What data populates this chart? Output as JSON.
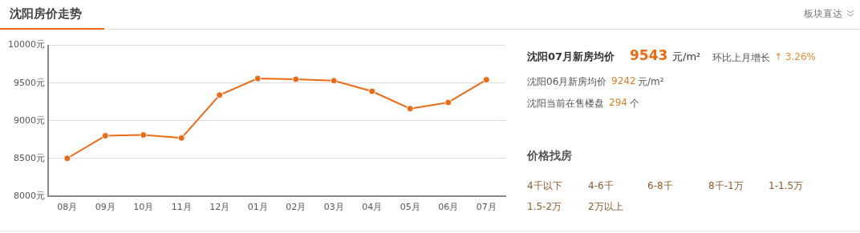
{
  "chart_data": [
    {
      "type": "line",
      "title": "沈阳房价走势",
      "annotations": [
        "板块直达"
      ],
      "categories": [
        "08月",
        "09月",
        "10月",
        "11月",
        "12月",
        "01月",
        "02月",
        "03月",
        "04月",
        "05月",
        "06月",
        "07月"
      ],
      "values": [
        8500,
        8800,
        8810,
        8770,
        9340,
        9560,
        9550,
        9530,
        9390,
        9160,
        9242,
        9543
      ],
      "color": "#ee6a12",
      "marker": "circle",
      "line_style": "solid",
      "grid": "y",
      "legend": false,
      "ylim": [
        8000,
        10000
      ],
      "yticks": [
        {
          "value": 8000,
          "label": "8000元"
        },
        {
          "value": 8500,
          "label": "8500元"
        },
        {
          "value": 9000,
          "label": "9000元"
        },
        {
          "value": 9500,
          "label": "9500元"
        },
        {
          "value": 10000,
          "label": "10000元"
        }
      ]
    },
    {
      "type": "other",
      "title": "价格找房",
      "annotations": [
        "沈阳07月新房均价",
        "9543",
        "元/m²",
        "环比上月增长",
        "↑ 3.26%",
        "沈阳06月新房均价",
        "9242",
        "元/m²",
        "沈阳当前在售楼盘",
        "294",
        "个",
        "4千以下",
        "4-6千",
        "6-8千",
        "8千-1万",
        "1-1.5万",
        "1.5-2万",
        "2万以上"
      ]
    }
  ]
}
